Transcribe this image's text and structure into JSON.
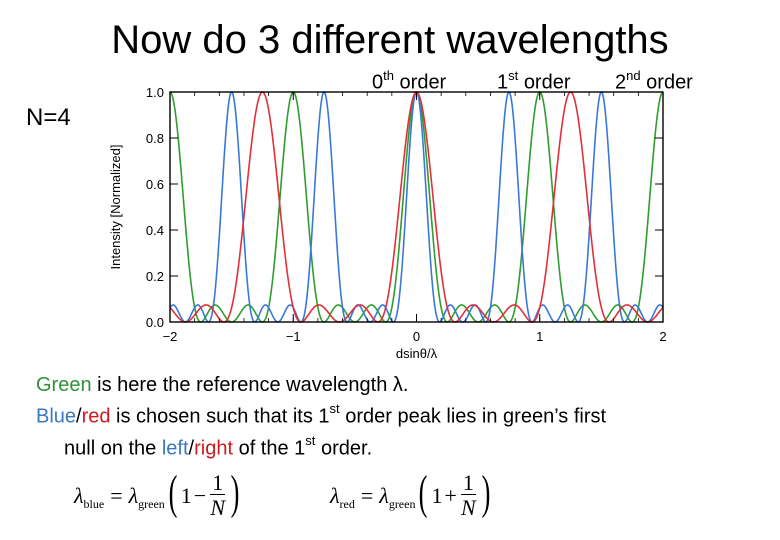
{
  "title": "Now do 3 different wavelengths",
  "orders": [
    {
      "n": "0",
      "suffix": "th",
      "word": "order"
    },
    {
      "n": "1",
      "suffix": "st",
      "word": "order"
    },
    {
      "n": "2",
      "suffix": "nd",
      "word": "order"
    }
  ],
  "n_label": "N=4",
  "caption": {
    "line1_green": "Green",
    "line1_rest": " is here the reference wavelength λ.",
    "line2_blue": "Blue",
    "line2_slash": "/",
    "line2_red": "red",
    "line2_mid": " is chosen such that its 1",
    "line2_sup": "st",
    "line2_rest": " order peak lies in green’s first",
    "line3_start": "null on the ",
    "line3_left": "left",
    "line3_slash": "/",
    "line3_right": "right",
    "line3_mid": " of the 1",
    "line3_sup": "st",
    "line3_end": " order."
  },
  "formulas": {
    "blue": {
      "lhs": "λ",
      "lhs_sub": "blue",
      "eq": "=",
      "rhs": "λ",
      "rhs_sub": "green",
      "one": "1",
      "op": "−",
      "num": "1",
      "den": "N"
    },
    "red": {
      "lhs": "λ",
      "lhs_sub": "red",
      "eq": "=",
      "rhs": "λ",
      "rhs_sub": "green",
      "one": "1",
      "op": "+",
      "num": "1",
      "den": "N"
    }
  },
  "chart_data": {
    "type": "line",
    "xlabel": "dsinθ/λ",
    "ylabel": "Intensity [Normalized]",
    "xlim": [
      -2,
      2
    ],
    "ylim": [
      0,
      1
    ],
    "xticks": [
      -2,
      -1,
      0,
      1,
      2
    ],
    "xtick_labels": [
      "−2",
      "−1",
      "0",
      "1",
      "2"
    ],
    "yticks": [
      0.0,
      0.2,
      0.4,
      0.6,
      0.8,
      1.0
    ],
    "ytick_labels": [
      "0.0",
      "0.2",
      "0.4",
      "0.6",
      "0.8",
      "1.0"
    ],
    "N": 4,
    "series": [
      {
        "color": "#2f9e2f",
        "wavelength_ratio": 1.0
      },
      {
        "color": "#3a78d8",
        "wavelength_ratio": 0.75
      },
      {
        "color": "#e0303a",
        "wavelength_ratio": 1.25
      }
    ]
  }
}
